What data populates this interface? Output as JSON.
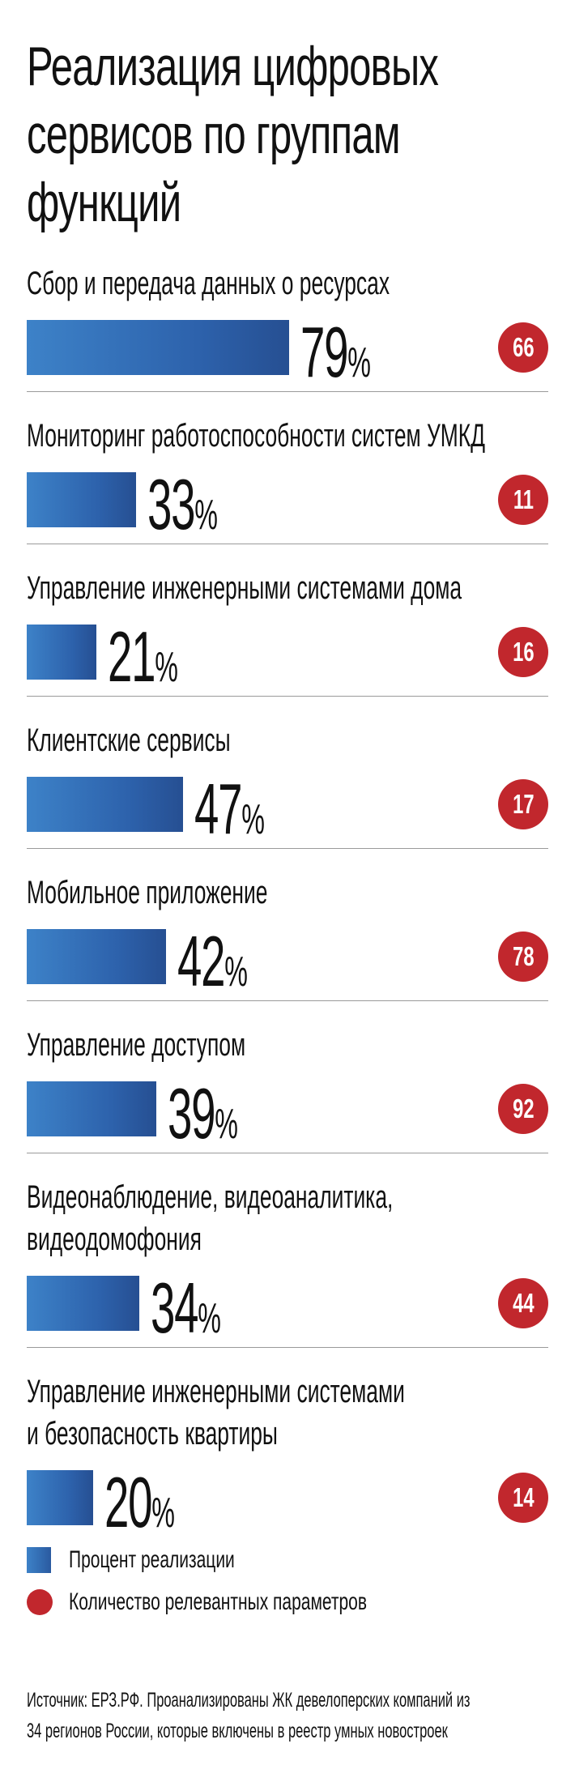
{
  "chart_data": {
    "type": "bar",
    "title": "Реализация цифровых сервисов по группам функций",
    "unit": "%",
    "categories": [
      [
        "Сбор и передача данных о ресурсах"
      ],
      [
        "Мониторинг работоспособности систем УМКД"
      ],
      [
        "Управление инженерными системами дома"
      ],
      [
        "Клиентские сервисы"
      ],
      [
        "Мобильное приложение"
      ],
      [
        "Управление доступом"
      ],
      [
        "Видеонаблюдение, видеоаналитика,",
        "видеодомофония"
      ],
      [
        "Управление инженерными системами",
        "и безопасность квартиры"
      ]
    ],
    "series": [
      {
        "name": "Процент реализации",
        "color": "#2f67b0",
        "values": [
          79,
          33,
          21,
          47,
          42,
          39,
          34,
          20
        ]
      },
      {
        "name": "Количество релевантных параметров",
        "color": "#c1272d",
        "values": [
          66,
          11,
          16,
          17,
          78,
          92,
          44,
          14
        ]
      }
    ],
    "legend_position": "bottom-left",
    "source": [
      "Источник: ЕРЗ.РФ. Проанализированы ЖК девелоперских компаний из",
      "34 регионов России, которые включены в реестр умных новостроек"
    ]
  }
}
